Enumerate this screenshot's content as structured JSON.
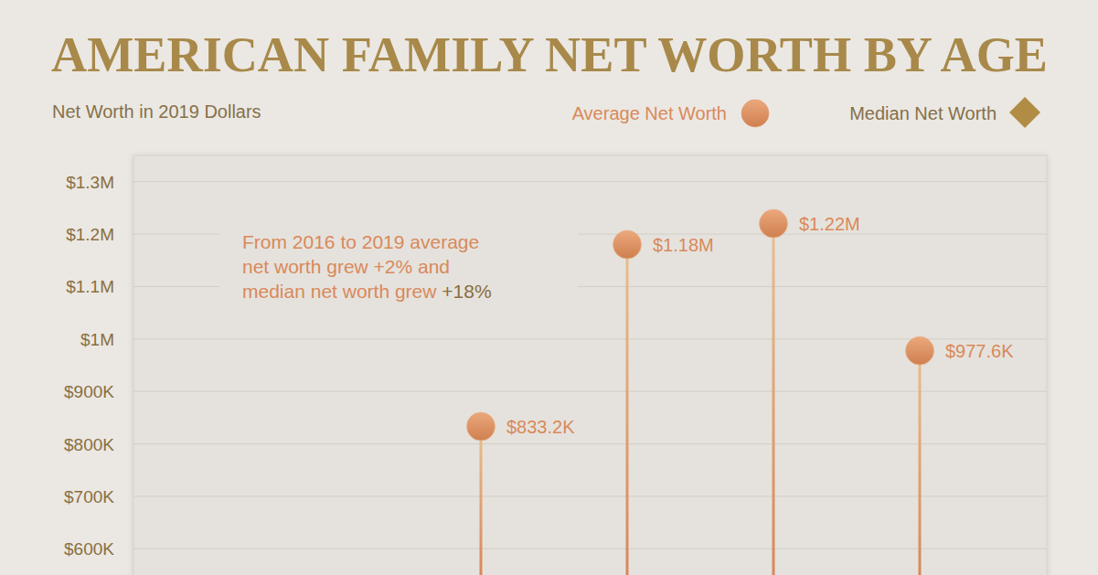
{
  "chart_data": {
    "type": "lollipop",
    "title": "AMERICAN FAMILY NET WORTH BY AGE",
    "subtitle": "Net Worth in 2019 Dollars",
    "annotation": [
      "From 2016 to 2019 average",
      "net worth grew +2% and",
      "median net worth grew +18%"
    ],
    "categories": [
      null,
      null,
      null,
      null,
      null,
      null
    ],
    "series": [
      {
        "name": "Average Net Worth",
        "color": "#e0915f",
        "marker": "circle",
        "values": [
          null,
          null,
          833200,
          1180000,
          1220000,
          977600
        ],
        "value_labels": [
          null,
          null,
          "$833.2K",
          "$1.18M",
          "$1.22M",
          "$977.6K"
        ]
      },
      {
        "name": "Median Net Worth",
        "color": "#b08c45",
        "marker": "diamond",
        "values": [
          null,
          null,
          null,
          null,
          null,
          null
        ]
      }
    ],
    "ylim": [
      550000,
      1350000
    ],
    "yticks": [
      {
        "value": 600000,
        "label": "$600K"
      },
      {
        "value": 700000,
        "label": "$700K"
      },
      {
        "value": 800000,
        "label": "$800K"
      },
      {
        "value": 900000,
        "label": "$900K"
      },
      {
        "value": 1000000,
        "label": "$1M"
      },
      {
        "value": 1100000,
        "label": "$1.1M"
      },
      {
        "value": 1200000,
        "label": "$1.2M"
      },
      {
        "value": 1300000,
        "label": "$1.3M"
      }
    ],
    "grid": true,
    "data_labels": true,
    "legend": "top-right"
  }
}
